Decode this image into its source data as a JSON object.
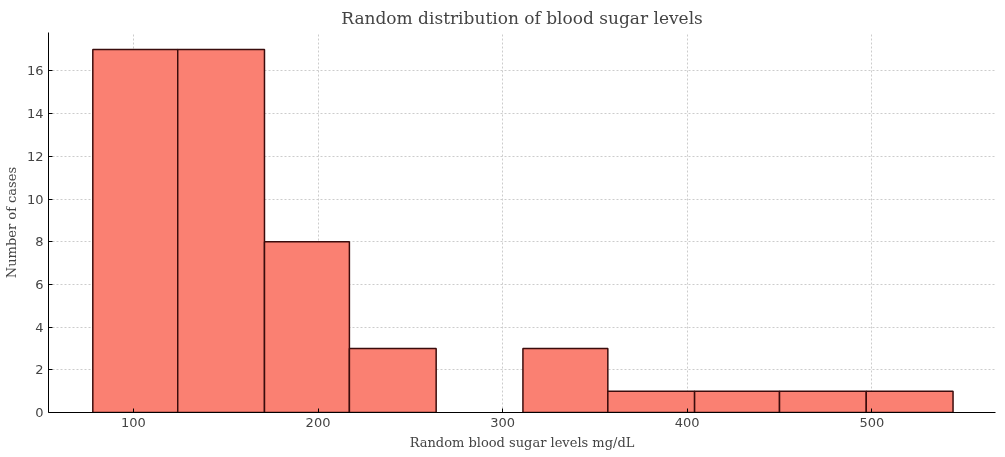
{
  "chart_data": {
    "type": "histogram",
    "title": "Random distribution of blood sugar levels",
    "xlabel": "Random blood sugar levels mg/dL",
    "ylabel": "Number of cases",
    "bins": [
      78,
      124,
      171,
      217,
      264,
      311,
      357,
      404,
      450,
      497,
      544
    ],
    "values": [
      17,
      17,
      8,
      3,
      0,
      3,
      1,
      1,
      1,
      1
    ],
    "color": "#fa8072",
    "xlim": [
      54,
      567
    ],
    "xticks": [
      100,
      200,
      300,
      400,
      500
    ],
    "ylim": [
      0,
      17.8
    ],
    "yticks": [
      0,
      2,
      4,
      6,
      8,
      10,
      12,
      14,
      16
    ],
    "grid": true
  }
}
